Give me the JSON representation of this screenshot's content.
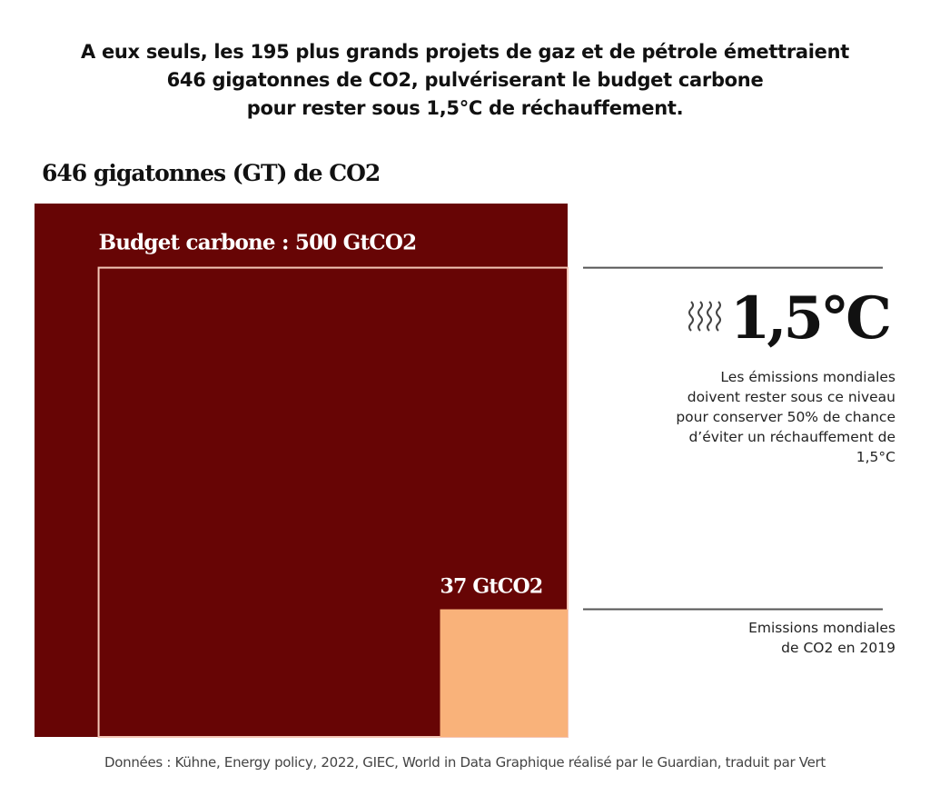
{
  "headline": [
    "A eux seuls, les 195 plus grands projets de gaz et de pétrole émettraient",
    "646 gigatonnes de CO2, pulvériserant le budget carbone",
    "pour rester sous 1,5°C de réchauffement."
  ],
  "chart_data": {
    "type": "area-proportional squares",
    "title": "646 gigatonnes (GT) de CO2",
    "unit": "GtCO2",
    "items": [
      {
        "name": "Emissions des 195 plus grands projets de gaz et de pétrole",
        "label": "646 gigatonnes (GT) de CO2",
        "value": 646,
        "color": "#670505"
      },
      {
        "name": "Budget carbone 1,5°C",
        "label": "Budget carbone : 500 GtCO2",
        "value": 500,
        "color": "#670505",
        "outline": "#f4c7b8"
      },
      {
        "name": "Emissions mondiales de CO2 en 2019",
        "label": "37 GtCO2",
        "value": 37,
        "color": "#f9b27a"
      }
    ]
  },
  "annotations": {
    "temperature": "1,5°C",
    "heat_icon": "heat-waves-icon",
    "budget_note": "Les émissions mondiales doivent rester sous ce niveau pour conserver 50% de chance d’éviter un réchauffement de 1,5°C",
    "budget_note_lines": [
      "Les émissions mondiales",
      "doivent rester sous ce niveau",
      "pour conserver 50% de chance",
      "d’éviter un réchauffement de",
      "1,5°C"
    ],
    "annual_note_lines": [
      "Emissions mondiales",
      "de CO2 en 2019"
    ]
  },
  "colors": {
    "dark_red": "#670505",
    "orange": "#f9b27a",
    "outline": "#f4c7b8",
    "leader_line": "#555555"
  },
  "footer": "Données : Kühne, Energy policy, 2022, GIEC, World in Data Graphique réalisé par le Guardian, traduit par Vert"
}
